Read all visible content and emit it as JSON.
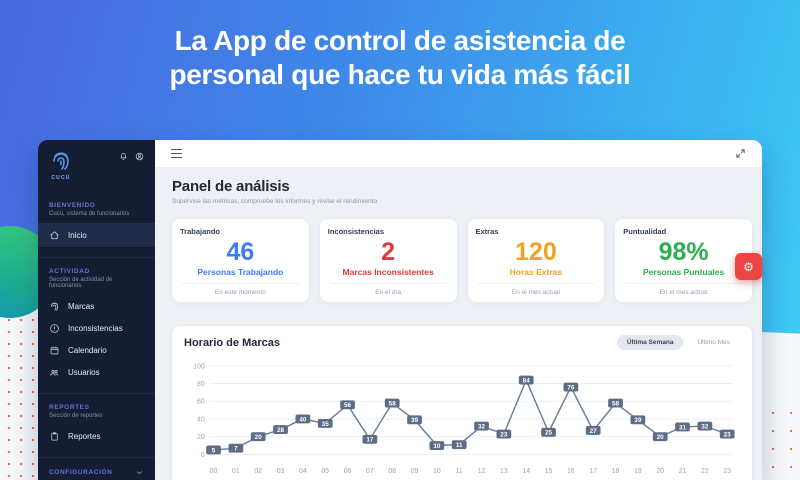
{
  "hero": {
    "title_line1": "La App de control de asistencia de",
    "title_line2": "personal que hace tu vida más fácil"
  },
  "sidebar": {
    "brand": "CUCÚ",
    "groups": {
      "welcome": {
        "label": "BIENVENIDO",
        "sublabel": "Cucú, sistema de funcionarios"
      },
      "activity": {
        "label": "ACTIVIDAD",
        "sublabel": "Sección de actividad de funcionarios"
      },
      "reports": {
        "label": "REPORTES",
        "sublabel": "Sección de reportes"
      },
      "settings": {
        "label": "CONFIGURACIÓN"
      }
    },
    "items": {
      "inicio": "Inicio",
      "marcas": "Marcas",
      "inconsistencias": "Inconsistencias",
      "calendario": "Calendario",
      "usuarios": "Usuarios",
      "reportes": "Reportes"
    }
  },
  "panel": {
    "title": "Panel de análisis",
    "subtitle": "Supervise las métricas, compruebe los informes y revise el rendimiento"
  },
  "cards": [
    {
      "title": "Trabajando",
      "value": "46",
      "label": "Personas Trabajando",
      "footer": "En este momento",
      "color": "#3d7bfa"
    },
    {
      "title": "Inconsistencias",
      "value": "2",
      "label": "Marcas Inconsistentes",
      "footer": "En el día",
      "color": "#e23a3a"
    },
    {
      "title": "Extras",
      "value": "120",
      "label": "Horas Extras",
      "footer": "En el mes actual",
      "color": "#f5a01f"
    },
    {
      "title": "Puntualidad",
      "value": "98%",
      "label": "Personas Puntuales",
      "footer": "En el mes actual",
      "color": "#2ab04f"
    }
  ],
  "chart_header": {
    "title": "Horario de Marcas",
    "period_week": "Última Semana",
    "period_month": "Último Mes"
  },
  "chart_data": {
    "type": "line",
    "title": "Horario de Marcas",
    "x": [
      "00",
      "01",
      "02",
      "03",
      "04",
      "05",
      "06",
      "07",
      "08",
      "09",
      "10",
      "11",
      "12",
      "13",
      "14",
      "15",
      "16",
      "17",
      "18",
      "19",
      "20",
      "21",
      "22",
      "23"
    ],
    "values": [
      5,
      7,
      20,
      28,
      40,
      35,
      56,
      17,
      58,
      39,
      10,
      11,
      32,
      23,
      84,
      25,
      76,
      27,
      58,
      39,
      20,
      31,
      32,
      23
    ],
    "ylim": [
      0,
      100
    ],
    "yticks": [
      0,
      20,
      40,
      60,
      80,
      100
    ],
    "grid": true,
    "legend": false,
    "line_color": "#6e7f99",
    "point_label_bg": "#5d6d87",
    "axis_text_color": "#9aa6b5",
    "grid_color": "#e7ecf2"
  },
  "icons": {
    "gear": "⚙"
  },
  "colors": {
    "accent_red": "#ee4444",
    "sidebar_bg": "#141d32",
    "section_label": "#6673da",
    "dots_orange": "#f96a45"
  }
}
